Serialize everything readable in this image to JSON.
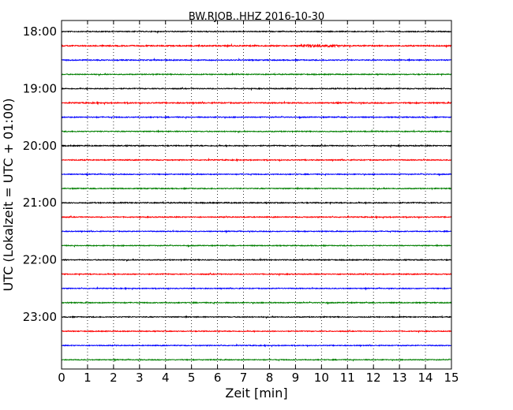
{
  "chart_data": {
    "type": "line",
    "title": "BW.RJOB..HHZ 2016-10-30",
    "xlabel": "Zeit  [min]",
    "ylabel": "UTC (Lokalzeit = UTC + 01:00)",
    "xlim": [
      0,
      15
    ],
    "x_ticks": [
      "0",
      "1",
      "2",
      "3",
      "4",
      "5",
      "6",
      "7",
      "8",
      "9",
      "10",
      "11",
      "12",
      "13",
      "14",
      "15"
    ],
    "y_ticks": [
      "18:00",
      "19:00",
      "20:00",
      "21:00",
      "22:00",
      "23:00"
    ],
    "y_range_hours": [
      18.0,
      24.0
    ],
    "row_interval_minutes": 15,
    "grid": "vertical dotted at each minute",
    "color_cycle": [
      "#000000",
      "#ff0000",
      "#0000ff",
      "#007f00"
    ],
    "series": [
      {
        "start": "18:00",
        "color": "#000000",
        "amplitude": 0.55
      },
      {
        "start": "18:15",
        "color": "#ff0000",
        "amplitude": 0.7,
        "burst_at_min": 9.9
      },
      {
        "start": "18:30",
        "color": "#0000ff",
        "amplitude": 0.6
      },
      {
        "start": "18:45",
        "color": "#007f00",
        "amplitude": 0.55
      },
      {
        "start": "19:00",
        "color": "#000000",
        "amplitude": 0.55
      },
      {
        "start": "19:15",
        "color": "#ff0000",
        "amplitude": 0.65
      },
      {
        "start": "19:30",
        "color": "#0000ff",
        "amplitude": 0.55
      },
      {
        "start": "19:45",
        "color": "#007f00",
        "amplitude": 0.55
      },
      {
        "start": "20:00",
        "color": "#000000",
        "amplitude": 0.6
      },
      {
        "start": "20:15",
        "color": "#ff0000",
        "amplitude": 0.55
      },
      {
        "start": "20:30",
        "color": "#0000ff",
        "amplitude": 0.5
      },
      {
        "start": "20:45",
        "color": "#007f00",
        "amplitude": 0.55
      },
      {
        "start": "21:00",
        "color": "#000000",
        "amplitude": 0.6
      },
      {
        "start": "21:15",
        "color": "#ff0000",
        "amplitude": 0.55
      },
      {
        "start": "21:30",
        "color": "#0000ff",
        "amplitude": 0.5
      },
      {
        "start": "21:45",
        "color": "#007f00",
        "amplitude": 0.5
      },
      {
        "start": "22:00",
        "color": "#000000",
        "amplitude": 0.55
      },
      {
        "start": "22:15",
        "color": "#ff0000",
        "amplitude": 0.55
      },
      {
        "start": "22:30",
        "color": "#0000ff",
        "amplitude": 0.5
      },
      {
        "start": "22:45",
        "color": "#007f00",
        "amplitude": 0.55
      },
      {
        "start": "23:00",
        "color": "#000000",
        "amplitude": 0.55
      },
      {
        "start": "23:15",
        "color": "#ff0000",
        "amplitude": 0.5
      },
      {
        "start": "23:30",
        "color": "#0000ff",
        "amplitude": 0.5
      },
      {
        "start": "23:45",
        "color": "#007f00",
        "amplitude": 0.5
      }
    ]
  }
}
